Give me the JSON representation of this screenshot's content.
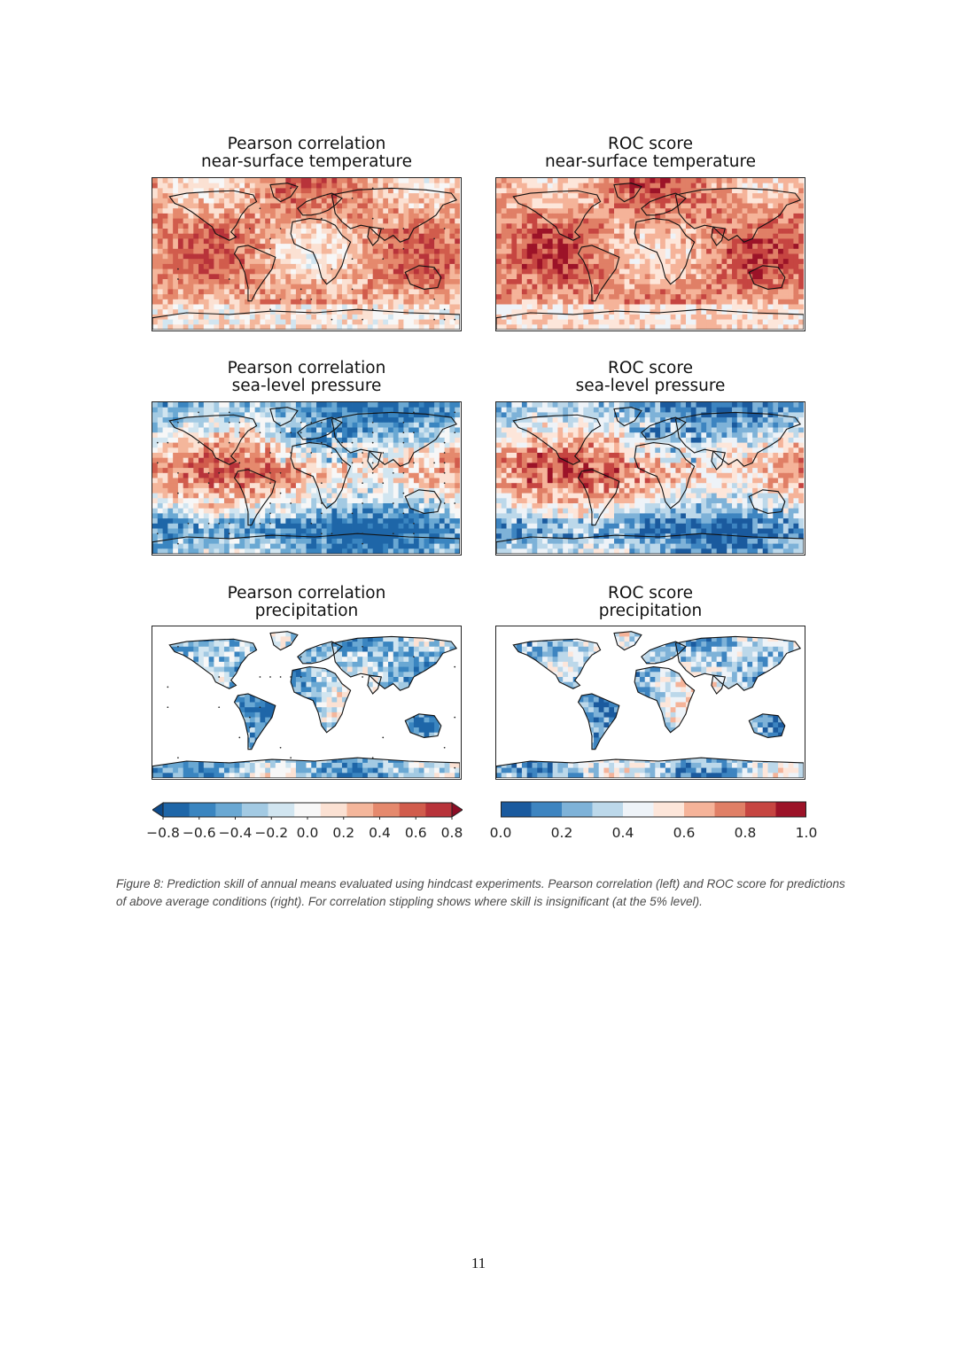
{
  "figure": {
    "panels": [
      {
        "id": "pearson-temp",
        "title_line1": "Pearson correlation",
        "title_line2": "near-surface temperature",
        "metric": "pearson",
        "variable": "temperature",
        "stippled": true
      },
      {
        "id": "roc-temp",
        "title_line1": "ROC score",
        "title_line2": "near-surface temperature",
        "metric": "roc",
        "variable": "temperature",
        "stippled": false
      },
      {
        "id": "pearson-slp",
        "title_line1": "Pearson correlation",
        "title_line2": "sea-level pressure",
        "metric": "pearson",
        "variable": "pressure",
        "stippled": true
      },
      {
        "id": "roc-slp",
        "title_line1": "ROC score",
        "title_line2": "sea-level pressure",
        "metric": "roc",
        "variable": "pressure",
        "stippled": false
      },
      {
        "id": "pearson-precip",
        "title_line1": "Pearson correlation",
        "title_line2": "precipitation",
        "metric": "pearson",
        "variable": "precipitation",
        "stippled": true
      },
      {
        "id": "roc-precip",
        "title_line1": "ROC score",
        "title_line2": "precipitation",
        "metric": "roc",
        "variable": "precipitation",
        "stippled": false
      }
    ],
    "colorbar_left": {
      "ticks": [
        "−0.8",
        "−0.6",
        "−0.4",
        "−0.2",
        "0.0",
        "0.2",
        "0.4",
        "0.6",
        "0.8"
      ],
      "range": [
        -0.8,
        0.8
      ],
      "extend": "both",
      "colors": [
        "#0d4a8a",
        "#1e66a8",
        "#3a85c0",
        "#6aa8d3",
        "#a3cae3",
        "#d1e5f0",
        "#f7f7f7",
        "#fbe1d3",
        "#f4b69b",
        "#e5896d",
        "#d15c4c",
        "#b8333a",
        "#8c0d25"
      ]
    },
    "colorbar_right": {
      "ticks": [
        "0.0",
        "0.2",
        "0.4",
        "0.6",
        "0.8",
        "1.0"
      ],
      "range": [
        0.0,
        1.0
      ],
      "colors": [
        "#1a5a9e",
        "#3d84c0",
        "#7eb2d8",
        "#bcd8ea",
        "#eef3f8",
        "#fde6da",
        "#f5b399",
        "#e07f66",
        "#c64541",
        "#9c1328"
      ]
    },
    "caption": "Figure 8: Prediction skill of annual means evaluated using hindcast experiments. Pearson correlation (left) and ROC score for predictions of above average conditions (right). For correlation stippling shows where skill is insignificant (at the 5% level)."
  },
  "page_number": "11"
}
